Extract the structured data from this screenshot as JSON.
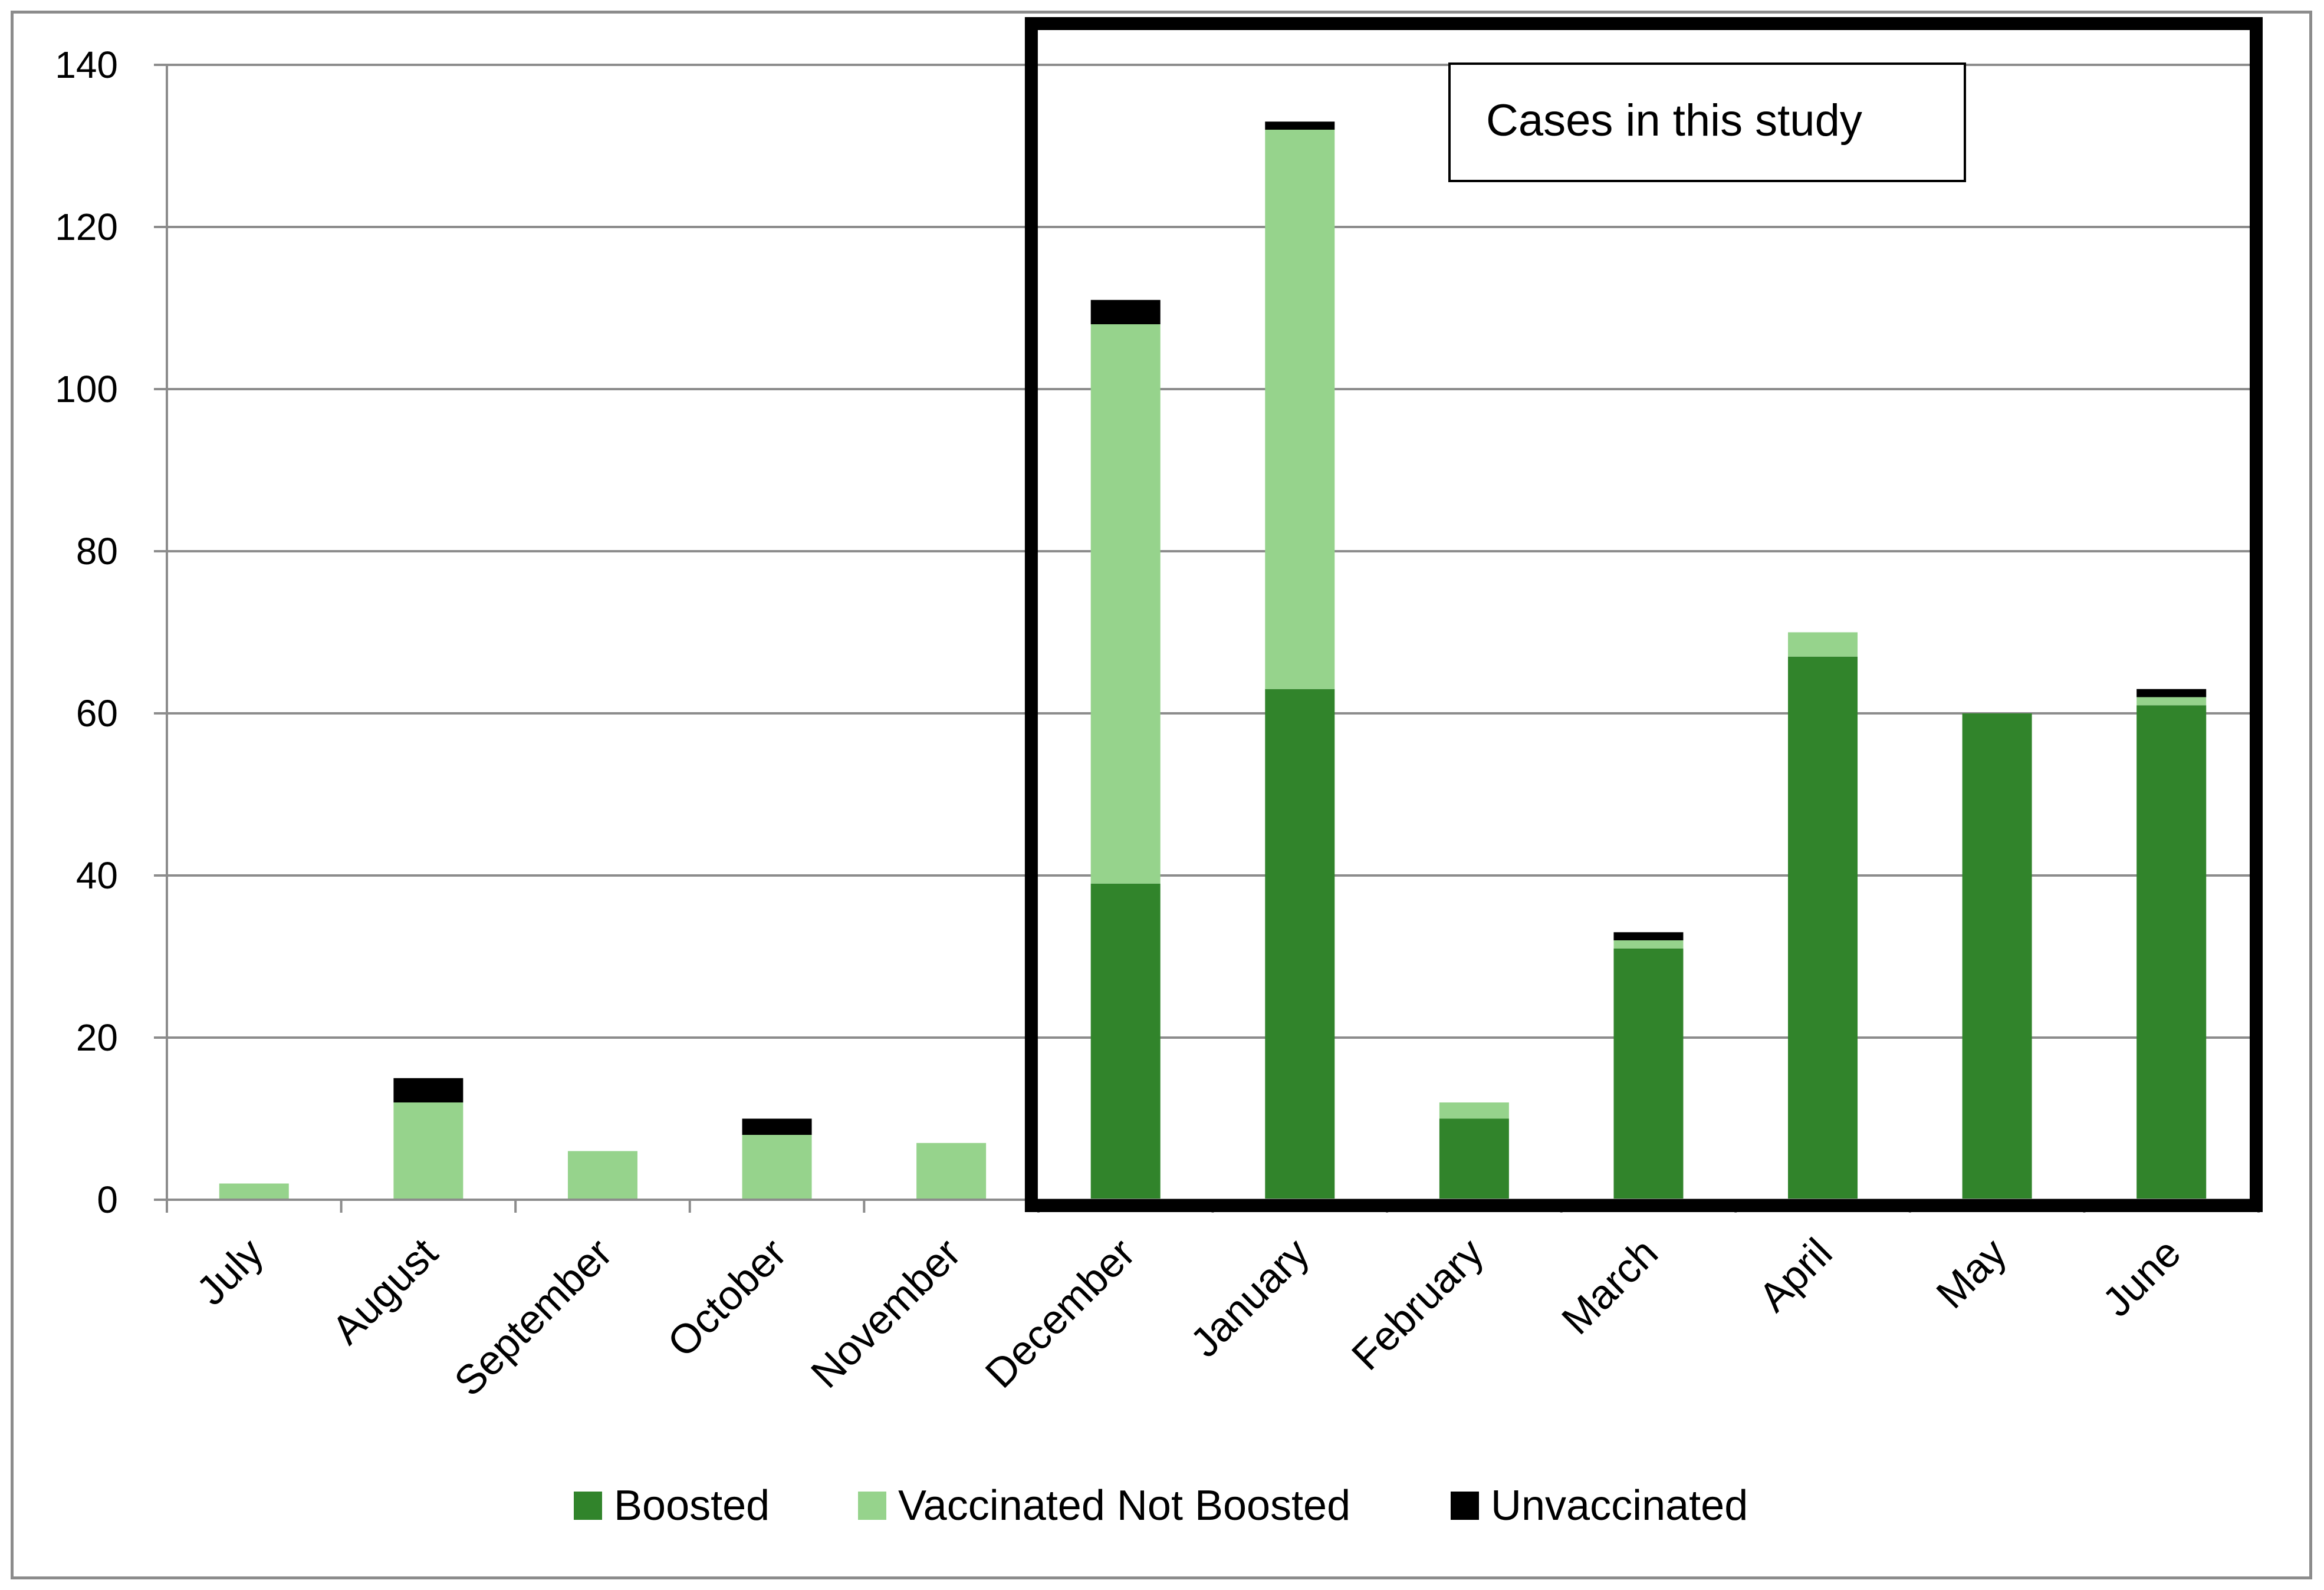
{
  "chart_data": {
    "type": "bar",
    "stacked": true,
    "title": "",
    "xlabel": "",
    "ylabel": "",
    "ylim": [
      0,
      140
    ],
    "yticks": [
      0,
      20,
      40,
      60,
      80,
      100,
      120,
      140
    ],
    "grid": true,
    "categories": [
      "July",
      "August",
      "September",
      "October",
      "November",
      "December",
      "January",
      "February",
      "March",
      "April",
      "May",
      "June"
    ],
    "series": [
      {
        "name": "Boosted",
        "color": "#31842b",
        "values": [
          0,
          0,
          0,
          0,
          0,
          39,
          63,
          10,
          31,
          67,
          60,
          61
        ]
      },
      {
        "name": "Vaccinated Not Boosted",
        "color": "#96d38c",
        "values": [
          2,
          12,
          6,
          8,
          7,
          69,
          69,
          2,
          1,
          3,
          0,
          1
        ]
      },
      {
        "name": "Unvaccinated",
        "color": "#000000",
        "values": [
          0,
          3,
          0,
          2,
          0,
          3,
          1,
          0,
          1,
          0,
          0,
          1
        ]
      }
    ],
    "legend": "bottom",
    "annotation": {
      "text": "Cases in this study",
      "highlight_categories": [
        "December",
        "January",
        "February",
        "March",
        "April",
        "May",
        "June"
      ]
    }
  }
}
